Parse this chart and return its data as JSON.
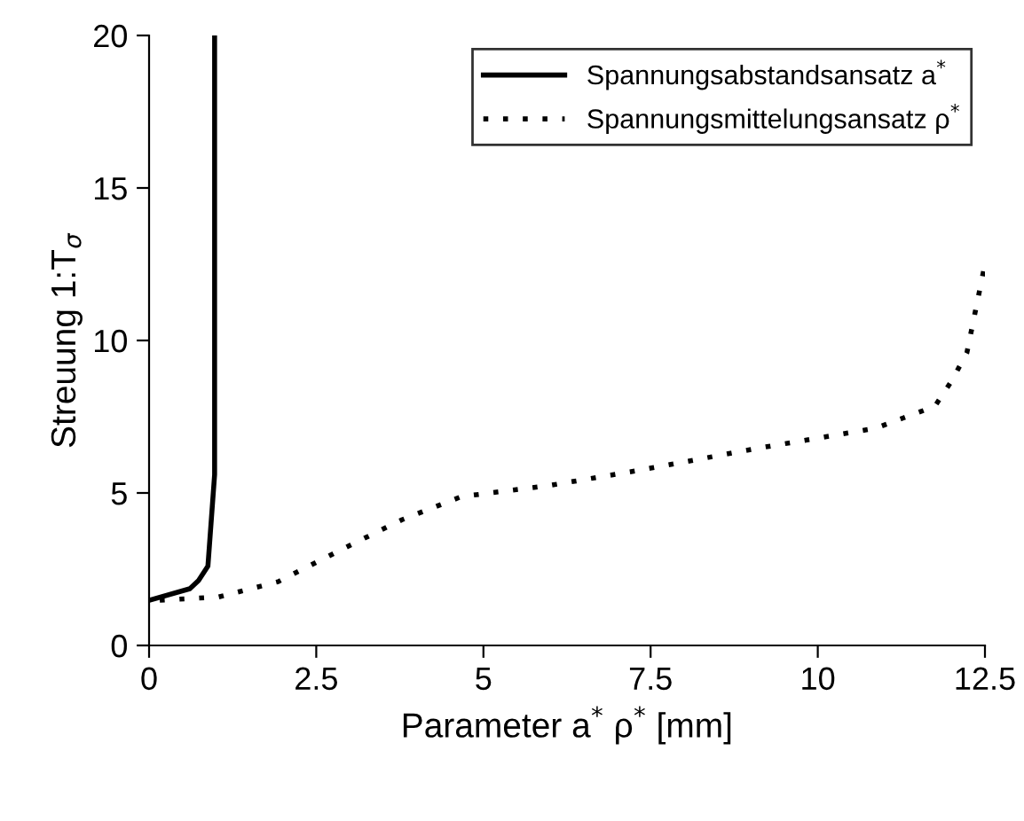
{
  "chart_data": {
    "type": "line",
    "xlabel": "Parameter a$^{*}$ ρ$^{*}$ [mm]",
    "ylabel": "Streuung 1:T$_{σ}$",
    "xlim": [
      0,
      12.5
    ],
    "xticks": [
      0,
      2.5,
      5,
      7.5,
      10,
      12.5
    ],
    "ylim": [
      0,
      20
    ],
    "yticks": [
      0,
      5,
      10,
      15,
      20
    ],
    "grid": false,
    "legend": "top right",
    "series": [
      {
        "name": "Spannungsabstandsansatz a$^{*}$",
        "color": "#000000",
        "line_style": "solid",
        "x": [
          0,
          0.61,
          0.74,
          0.88,
          0.98,
          0.98
        ],
        "values": [
          1.48,
          1.86,
          2.13,
          2.6,
          5.6,
          20
        ]
      },
      {
        "name": "Spannungsmittelungsansatz ρ$^{*}$",
        "color": "#000000",
        "line_style": "dotted",
        "x": [
          0.16,
          1.04,
          1.93,
          2.9,
          3.78,
          4.67,
          6.0,
          7.32,
          9.09,
          10.86,
          11.75,
          12.01,
          12.23,
          12.5
        ],
        "values": [
          1.48,
          1.59,
          2.09,
          3.17,
          4.12,
          4.88,
          5.25,
          5.74,
          6.46,
          7.12,
          7.84,
          8.7,
          9.6,
          12.5
        ]
      }
    ]
  }
}
